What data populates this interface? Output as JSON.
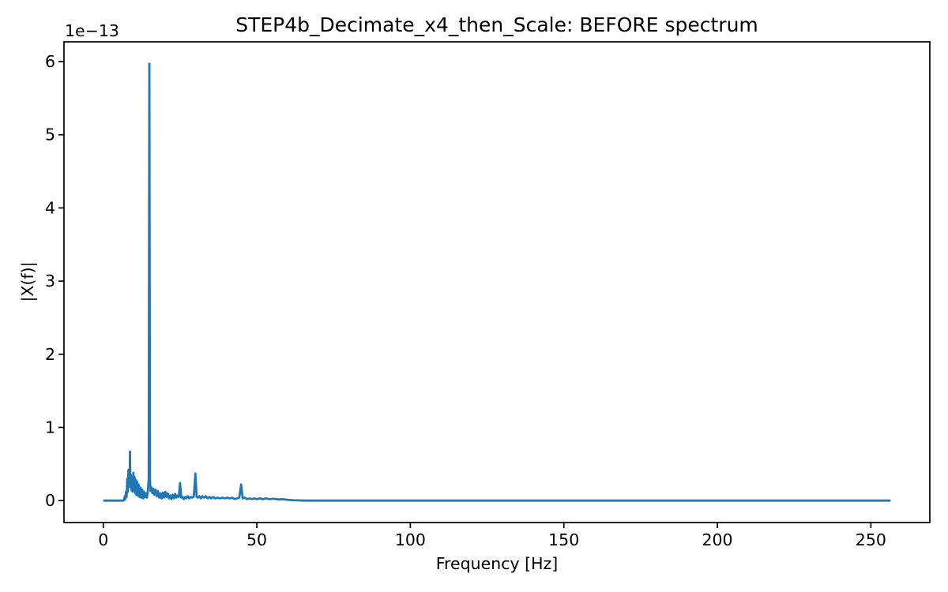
{
  "chart_data": {
    "type": "line",
    "title": "STEP4b_Decimate_x4_then_Scale: BEFORE spectrum",
    "xlabel": "Frequency [Hz]",
    "ylabel": "|X(f)|",
    "y_scale_label": "1e−13",
    "y_unit": "1e-13",
    "xlim": [
      -12.8,
      269.2
    ],
    "ylim": [
      -0.3,
      6.27
    ],
    "x_ticks": [
      0,
      50,
      100,
      150,
      200,
      250
    ],
    "y_ticks": [
      0,
      1,
      2,
      3,
      4,
      5,
      6
    ],
    "grid": false,
    "legend": null,
    "line_color": "#1f77b4",
    "axis_color": "#000000",
    "background_color": "#ffffff",
    "notable_peaks": [
      {
        "freq_hz": 8.7,
        "value_1e13": 0.67
      },
      {
        "freq_hz": 15.0,
        "value_1e13": 5.97
      },
      {
        "freq_hz": 25.0,
        "value_1e13": 0.24
      },
      {
        "freq_hz": 30.0,
        "value_1e13": 0.37
      },
      {
        "freq_hz": 45.0,
        "value_1e13": 0.22
      }
    ],
    "series": [
      {
        "name": "BEFORE spectrum",
        "points": [
          [
            0,
            0
          ],
          [
            3,
            0
          ],
          [
            5,
            0
          ],
          [
            6.5,
            0
          ],
          [
            6.8,
            0.01
          ],
          [
            7.0,
            0.06
          ],
          [
            7.2,
            0.02
          ],
          [
            7.4,
            0.12
          ],
          [
            7.6,
            0.05
          ],
          [
            7.8,
            0.3
          ],
          [
            8.0,
            0.12
          ],
          [
            8.2,
            0.42
          ],
          [
            8.4,
            0.18
          ],
          [
            8.6,
            0.3
          ],
          [
            8.7,
            0.67
          ],
          [
            8.8,
            0.2
          ],
          [
            9.0,
            0.35
          ],
          [
            9.2,
            0.14
          ],
          [
            9.4,
            0.3
          ],
          [
            9.6,
            0.12
          ],
          [
            9.8,
            0.38
          ],
          [
            10.0,
            0.15
          ],
          [
            10.2,
            0.32
          ],
          [
            10.4,
            0.1
          ],
          [
            10.6,
            0.28
          ],
          [
            10.8,
            0.08
          ],
          [
            11.0,
            0.26
          ],
          [
            11.2,
            0.07
          ],
          [
            11.5,
            0.22
          ],
          [
            11.8,
            0.05
          ],
          [
            12.1,
            0.18
          ],
          [
            12.4,
            0.04
          ],
          [
            12.7,
            0.15
          ],
          [
            13.0,
            0.03
          ],
          [
            13.3,
            0.12
          ],
          [
            13.6,
            0.05
          ],
          [
            13.9,
            0.1
          ],
          [
            14.2,
            0.04
          ],
          [
            14.5,
            0.12
          ],
          [
            14.8,
            0.3
          ],
          [
            15.0,
            5.97
          ],
          [
            15.2,
            0.28
          ],
          [
            15.4,
            0.13
          ],
          [
            15.7,
            0.18
          ],
          [
            16.0,
            0.1
          ],
          [
            16.3,
            0.16
          ],
          [
            16.6,
            0.08
          ],
          [
            17.0,
            0.15
          ],
          [
            17.4,
            0.06
          ],
          [
            17.8,
            0.13
          ],
          [
            18.2,
            0.04
          ],
          [
            18.6,
            0.1
          ],
          [
            19.0,
            0.03
          ],
          [
            19.4,
            0.11
          ],
          [
            19.8,
            0.04
          ],
          [
            20.2,
            0.12
          ],
          [
            20.6,
            0.05
          ],
          [
            21.0,
            0.1
          ],
          [
            21.4,
            0.03
          ],
          [
            21.8,
            0.07
          ],
          [
            22.2,
            0.02
          ],
          [
            22.6,
            0.08
          ],
          [
            23.0,
            0.03
          ],
          [
            23.4,
            0.09
          ],
          [
            23.8,
            0.04
          ],
          [
            24.2,
            0.07
          ],
          [
            24.6,
            0.05
          ],
          [
            25.0,
            0.24
          ],
          [
            25.4,
            0.04
          ],
          [
            25.8,
            0.05
          ],
          [
            26.2,
            0.02
          ],
          [
            26.6,
            0.05
          ],
          [
            27.0,
            0.03
          ],
          [
            27.5,
            0.06
          ],
          [
            28.0,
            0.03
          ],
          [
            28.5,
            0.05
          ],
          [
            29.0,
            0.04
          ],
          [
            29.5,
            0.06
          ],
          [
            30.0,
            0.37
          ],
          [
            30.4,
            0.05
          ],
          [
            30.8,
            0.04
          ],
          [
            31.3,
            0.06
          ],
          [
            31.8,
            0.03
          ],
          [
            32.3,
            0.06
          ],
          [
            32.8,
            0.04
          ],
          [
            33.4,
            0.06
          ],
          [
            34.0,
            0.03
          ],
          [
            34.6,
            0.05
          ],
          [
            35.2,
            0.03
          ],
          [
            35.8,
            0.05
          ],
          [
            36.5,
            0.03
          ],
          [
            37.2,
            0.04
          ],
          [
            38.0,
            0.03
          ],
          [
            38.8,
            0.04
          ],
          [
            39.6,
            0.03
          ],
          [
            40.4,
            0.04
          ],
          [
            41.2,
            0.03
          ],
          [
            42.0,
            0.04
          ],
          [
            42.8,
            0.02
          ],
          [
            43.6,
            0.03
          ],
          [
            44.3,
            0.04
          ],
          [
            44.9,
            0.22
          ],
          [
            45.4,
            0.03
          ],
          [
            46.0,
            0.04
          ],
          [
            46.8,
            0.02
          ],
          [
            47.6,
            0.03
          ],
          [
            48.4,
            0.02
          ],
          [
            49.2,
            0.03
          ],
          [
            50.0,
            0.02
          ],
          [
            51.0,
            0.03
          ],
          [
            52.0,
            0.02
          ],
          [
            53.0,
            0.03
          ],
          [
            54.0,
            0.02
          ],
          [
            55.5,
            0.025
          ],
          [
            57.0,
            0.015
          ],
          [
            58.5,
            0.02
          ],
          [
            60.0,
            0.01
          ],
          [
            62.0,
            0.005
          ],
          [
            64.0,
            0.002
          ],
          [
            66,
            0
          ],
          [
            80,
            0
          ],
          [
            100,
            0
          ],
          [
            130,
            0
          ],
          [
            160,
            0
          ],
          [
            190,
            0
          ],
          [
            220,
            0
          ],
          [
            256.4,
            0
          ]
        ]
      }
    ]
  }
}
